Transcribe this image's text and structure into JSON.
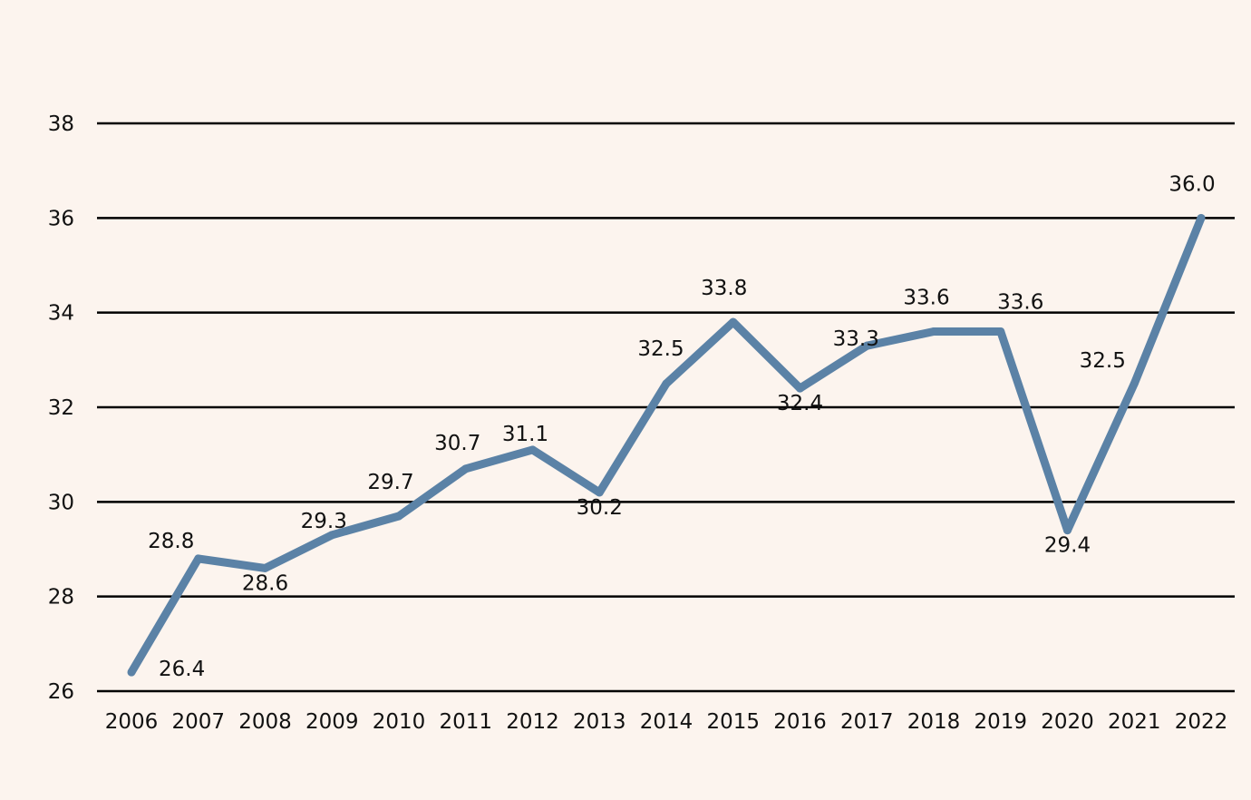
{
  "chart_data": {
    "type": "line",
    "title": "",
    "xlabel": "",
    "ylabel": "",
    "categories": [
      "2006",
      "2007",
      "2008",
      "2009",
      "2010",
      "2011",
      "2012",
      "2013",
      "2014",
      "2015",
      "2016",
      "2017",
      "2018",
      "2019",
      "2020",
      "2021",
      "2022"
    ],
    "series": [
      {
        "values": [
          26.4,
          28.8,
          28.6,
          29.3,
          29.7,
          30.7,
          31.1,
          30.2,
          32.5,
          33.8,
          32.4,
          33.3,
          33.6,
          33.6,
          29.4,
          32.5,
          36.0
        ],
        "labels": [
          "26.4",
          "28.8",
          "28.6",
          "29.3",
          "29.7",
          "30.7",
          "31.1",
          "30.2",
          "32.5",
          "33.8",
          "32.4",
          "33.3",
          "33.6",
          "33.6",
          "29.4",
          "32.5",
          "36.0"
        ],
        "color": "#5b82a6"
      }
    ],
    "ylim": [
      26,
      38
    ],
    "yticks": [
      26,
      28,
      30,
      32,
      34,
      36,
      38
    ],
    "ytick_labels": [
      "26",
      "28",
      "30",
      "32",
      "34",
      "36",
      "38"
    ],
    "grid": true,
    "legend": "none",
    "colors": {
      "background": "#fcf4ee",
      "gridline": "#000000",
      "line": "#5b82a6",
      "text": "#111111"
    }
  }
}
